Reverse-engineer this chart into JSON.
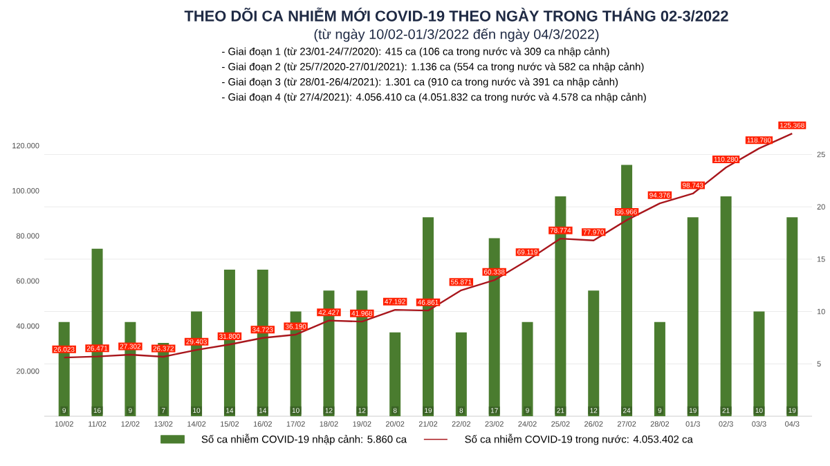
{
  "chart_data": {
    "type": "bar",
    "title": "THEO DÕI CA NHIỄM MỚI COVID-19 THEO NGÀY TRONG THÁNG 02-3/2022",
    "subtitle": "(từ ngày 10/02-01/3/2022 đến ngày 04/3/2022)",
    "annotations": [
      "- Giai đoạn 1 (từ 23/01-24/7/2020): 415 ca (106 ca trong nước và 309 ca nhập cảnh)",
      "- Giai đoạn 2 (từ 25/7/2020-27/01/2021): 1.136 ca (554 ca trong nước và 582 ca nhập cảnh)",
      "- Giai đoạn 3 (từ 28/01-26/4/2021): 1.301 ca (910 ca trong nước và 391 ca nhập cảnh)",
      "- Giai đoạn 4 (từ 27/4/2021): 4.056.410 ca (4.051.832 ca trong nước và 4.578 ca nhập cảnh)"
    ],
    "categories": [
      "10/02",
      "11/02",
      "12/02",
      "13/02",
      "14/02",
      "15/02",
      "16/02",
      "17/02",
      "18/02",
      "19/02",
      "20/02",
      "21/02",
      "22/02",
      "23/02",
      "24/02",
      "25/02",
      "26/02",
      "27/02",
      "28/02",
      "01/3",
      "02/3",
      "03/3",
      "04/3"
    ],
    "series": [
      {
        "name": "Số ca nhiễm COVID-19 nhập cảnh: 5.860 ca",
        "axis": "y2",
        "color": "#4a7c2f",
        "values": [
          9,
          16,
          9,
          7,
          10,
          14,
          14,
          10,
          12,
          12,
          8,
          19,
          8,
          17,
          9,
          21,
          12,
          24,
          9,
          19,
          21,
          10,
          19
        ],
        "value_labels": [
          "9",
          "16",
          "9",
          "7",
          "10",
          "14",
          "14",
          "10",
          "12",
          "12",
          "8",
          "19",
          "8",
          "17",
          "9",
          "21",
          "12",
          "24",
          "9",
          "19",
          "21",
          "10",
          "19"
        ]
      },
      {
        "name": "Số ca nhiễm COVID-19 trong nước: 4.053.402 ca",
        "type": "line",
        "color": "#a8161c",
        "values": [
          26023,
          26471,
          27302,
          26372,
          29403,
          31800,
          34723,
          36190,
          42427,
          41968,
          47192,
          46861,
          55871,
          60338,
          69119,
          78774,
          77970,
          86966,
          94376,
          98743,
          110280,
          118780,
          125368
        ],
        "value_labels": [
          "26.023",
          "26.471",
          "27.302",
          "26.372",
          "29.403",
          "31.800",
          "34.723",
          "36.190",
          "42.427",
          "41.968",
          "47.192",
          "46.861",
          "55.871",
          "60.338",
          "69.119",
          "78.774",
          "77.970",
          "86.966",
          "94.376",
          "98.743",
          "110.280",
          "118.780",
          "125.368"
        ]
      }
    ],
    "ylim": [
      0,
      130000
    ],
    "yticks": [
      {
        "value": 20000,
        "label": "20.000"
      },
      {
        "value": 40000,
        "label": "40.000"
      },
      {
        "value": 60000,
        "label": "60.000"
      },
      {
        "value": 80000,
        "label": "80.000"
      },
      {
        "value": 100000,
        "label": "100.000"
      },
      {
        "value": 120000,
        "label": "120.000"
      }
    ],
    "y2lim": [
      0,
      28
    ],
    "y2ticks": [
      5,
      10,
      15,
      20,
      25
    ],
    "grid": "y",
    "legend": "bottom"
  }
}
